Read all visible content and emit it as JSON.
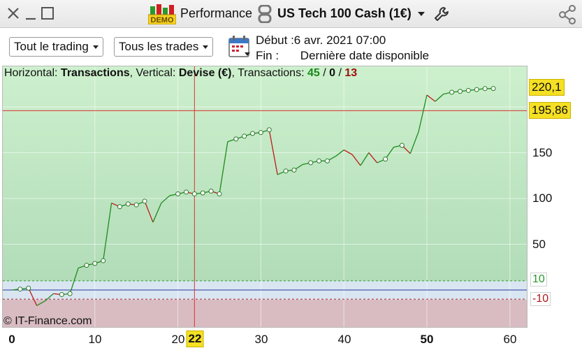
{
  "titlebar": {
    "app_title": "Performance",
    "instrument": "US Tech 100 Cash (1€)",
    "demo_badge": "DEMO"
  },
  "toolbar": {
    "filter_trading": "Tout le trading",
    "filter_trades": "Tous les trades",
    "start_line": "Début :6 avr. 2021 07:00",
    "end_label": "Fin :",
    "end_value": "Dernière date disponible"
  },
  "chart_header": {
    "horizontal_label": "Horizontal: ",
    "horizontal_value": "Transactions",
    "vertical_label": ", Vertical: ",
    "vertical_value": "Devise (€)",
    "transactions_label": ", Transactions: ",
    "count_win": "45",
    "sep1": " / ",
    "count_even": "0",
    "sep2": " / ",
    "count_loss": "13"
  },
  "copyright": "© IT-Finance.com",
  "colors": {
    "gain_line": "#1e8a1e",
    "loss_line": "#c01818",
    "gain_bg": "#c4ecc4",
    "loss_bg": "#d8bcc2",
    "badge": "#f5e023"
  },
  "chart_data": {
    "type": "line",
    "xlabel": "Transactions",
    "ylabel": "Devise (€)",
    "xlim": [
      -1,
      63
    ],
    "ylim": [
      -42,
      245
    ],
    "y_ticks": [
      "50",
      "100",
      "150"
    ],
    "x_ticks": [
      "0",
      "10",
      "20",
      "22",
      "30",
      "40",
      "50",
      "60"
    ],
    "last_value": "220,1",
    "cursor_value": "195,86",
    "cursor_x": "22",
    "upper_level": "10",
    "lower_level": "-10",
    "x": [
      1,
      2,
      3,
      4,
      5,
      6,
      7,
      8,
      9,
      10,
      11,
      12,
      13,
      14,
      15,
      16,
      17,
      18,
      19,
      20,
      21,
      22,
      23,
      24,
      25,
      26,
      27,
      28,
      29,
      30,
      31,
      32,
      33,
      34,
      35,
      36,
      37,
      38,
      39,
      40,
      41,
      42,
      43,
      44,
      45,
      46,
      47,
      48,
      49,
      50,
      51,
      52,
      53,
      54,
      55,
      56,
      57,
      58
    ],
    "values": [
      1,
      2,
      -17,
      -12,
      -4,
      -5,
      -4,
      24,
      27,
      29,
      32,
      95,
      91,
      94,
      93,
      97,
      74,
      95,
      103,
      105,
      107,
      105,
      106,
      108,
      105,
      162,
      165,
      168,
      171,
      172,
      175,
      126,
      130,
      131,
      137,
      139,
      141,
      141,
      146,
      153,
      148,
      136,
      150,
      139,
      143,
      156,
      158,
      149,
      173,
      213,
      206,
      214,
      216,
      217,
      218,
      219,
      220,
      220.1
    ]
  }
}
